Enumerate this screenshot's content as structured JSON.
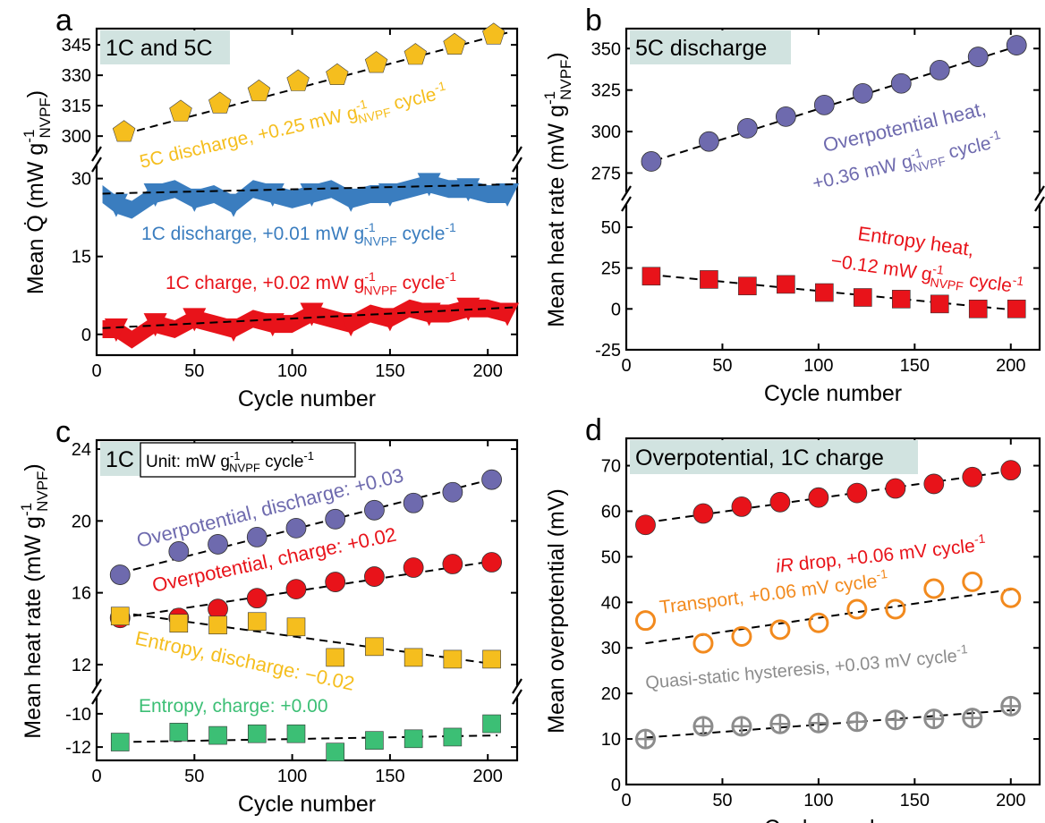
{
  "panels": [
    {
      "letter": "a",
      "title": "1C and 5C",
      "ylabel_main": "Mean Q̇ (mW g",
      "ylabel_sub": "NVPF",
      "ylabel_sup": "-1",
      "ylabel_tail": ")",
      "xlabel": "Cycle number",
      "xticks": [
        "0",
        "50",
        "100",
        "150",
        "200"
      ],
      "yticks_upper": [
        "300",
        "315",
        "330",
        "345"
      ],
      "yticks_lower": [
        "0",
        "15",
        "30"
      ],
      "annotations": [
        {
          "main": "5C discharge, +0.25 mW g",
          "sup": "-1",
          "sub": "NVPF",
          "tail": " cycle",
          "tail_sup": "-1"
        },
        {
          "main": "1C discharge, +0.01 mW g",
          "sup": "-1",
          "sub": "NVPF",
          "tail": " cycle",
          "tail_sup": "-1"
        },
        {
          "main": "1C charge, +0.02 mW g",
          "sup": "-1",
          "sub": "NVPF",
          "tail": " cycle",
          "tail_sup": "-1"
        }
      ]
    },
    {
      "letter": "b",
      "title": "5C discharge",
      "ylabel_main": "Mean heat rate (mW g",
      "ylabel_sub": "NVPF",
      "ylabel_sup": "-1",
      "ylabel_tail": ")",
      "xlabel": "Cycle number",
      "xticks": [
        "0",
        "50",
        "100",
        "150",
        "200"
      ],
      "yticks_upper": [
        "275",
        "300",
        "325",
        "350"
      ],
      "yticks_lower": [
        "-25",
        "0",
        "25",
        "50"
      ],
      "annotations": [
        {
          "line1": "Overpotential heat,",
          "main": "+0.36 mW g",
          "sup": "-1",
          "sub": "NVPF",
          "tail": " cycle",
          "tail_sup": "-1"
        },
        {
          "line1": "Entropy heat,",
          "main": "−0.12 mW g",
          "sup": "-1",
          "sub": "NVPF",
          "tail": " cycle",
          "tail_sup": "-1"
        }
      ]
    },
    {
      "letter": "c",
      "title": "1C",
      "unit_box": {
        "main": "Unit: mW g",
        "sup": "-1",
        "sub": "NVPF",
        "tail": " cycle",
        "tail_sup": "-1"
      },
      "ylabel_main": "Mean heat rate (mW g",
      "ylabel_sub": "NVPF",
      "ylabel_sup": "-1",
      "ylabel_tail": ")",
      "xlabel": "Cycle number",
      "xticks": [
        "0",
        "50",
        "100",
        "150",
        "200"
      ],
      "yticks_upper": [
        "12",
        "16",
        "20",
        "24"
      ],
      "yticks_lower": [
        "-12",
        "-10"
      ],
      "annotations": [
        "Overpotential, discharge: +0.03",
        "Overpotential, charge: +0.02",
        "Entropy, discharge: −0.02",
        "Entropy, charge: +0.00"
      ]
    },
    {
      "letter": "d",
      "title": "Overpotential, 1C charge",
      "ylabel": "Mean overpotential (mV)",
      "xlabel": "Cycle number",
      "xticks": [
        "0",
        "50",
        "100",
        "150",
        "200"
      ],
      "yticks": [
        "0",
        "10",
        "20",
        "30",
        "40",
        "50",
        "60",
        "70"
      ],
      "annotations": [
        {
          "italic": "iR",
          "main": " drop, +0.06 mV cycle",
          "sup": "-1"
        },
        {
          "main": "Transport, +0.06 mV cycle",
          "sup": "-1"
        },
        {
          "main": "Quasi-static hysteresis, +0.03 mV cycle",
          "sup": "-1"
        }
      ]
    }
  ],
  "colors": {
    "gold": "#F5BE1E",
    "blue": "#3A7DBF",
    "red": "#E8131A",
    "purple": "#6E6AAE",
    "green": "#3CBF75",
    "orange": "#F28A1E",
    "gray": "#8C8C8C",
    "title_bg": "#D1E3E0"
  },
  "chart_data": [
    {
      "type": "scatter",
      "panel": "a",
      "title": "1C and 5C",
      "xlabel": "Cycle number",
      "ylabel": "Mean Q̇ (mW g-1 NVPF)",
      "xlim": [
        0,
        215
      ],
      "ylim_lower": [
        -4,
        32
      ],
      "ylim_upper": [
        293,
        353
      ],
      "series": [
        {
          "name": "5C discharge",
          "marker": "pentagon",
          "color": "#F5BE1E",
          "x": [
            14,
            43,
            63,
            83,
            103,
            123,
            143,
            163,
            183,
            203
          ],
          "y": [
            302,
            312,
            316,
            322,
            327,
            330,
            336,
            340,
            345,
            350
          ]
        },
        {
          "name": "1C discharge",
          "marker": "dense-triangles",
          "color": "#3A7DBF",
          "x": [
            3,
            10,
            18,
            30,
            40,
            50,
            60,
            70,
            80,
            90,
            100,
            110,
            120,
            130,
            140,
            150,
            160,
            170,
            180,
            190,
            200,
            210
          ],
          "y": [
            27,
            25,
            24,
            27,
            28,
            26,
            27,
            25,
            28,
            27,
            26,
            27,
            28,
            26,
            27,
            27,
            28,
            29,
            28,
            28,
            27,
            27
          ],
          "fit": {
            "x": [
              3,
              213
            ],
            "y": [
              27.1,
              28.9
            ]
          }
        },
        {
          "name": "1C charge",
          "marker": "dense-triangles",
          "color": "#E8131A",
          "x": [
            3,
            10,
            18,
            30,
            40,
            50,
            60,
            70,
            80,
            90,
            100,
            110,
            120,
            130,
            140,
            150,
            160,
            170,
            180,
            190,
            200,
            210
          ],
          "y": [
            1,
            1,
            -1,
            2,
            1,
            3,
            2,
            1,
            3,
            2,
            2,
            4,
            3,
            2,
            4,
            3,
            5,
            4,
            4,
            5,
            5,
            4
          ],
          "fit": {
            "x": [
              3,
              213
            ],
            "y": [
              1.2,
              5.2
            ]
          }
        }
      ],
      "fit_5c": {
        "x": [
          14,
          210
        ],
        "y": [
          301,
          351
        ]
      }
    },
    {
      "type": "scatter",
      "panel": "b",
      "title": "5C discharge",
      "xlabel": "Cycle number",
      "ylabel": "Mean heat rate (mW g-1 NVPF)",
      "xlim": [
        0,
        215
      ],
      "ylim_lower": [
        -25,
        62
      ],
      "ylim_upper": [
        265,
        362
      ],
      "series": [
        {
          "name": "Overpotential heat",
          "marker": "circle",
          "color": "#6E6AAE",
          "x": [
            13,
            43,
            63,
            83,
            103,
            123,
            143,
            163,
            183,
            203
          ],
          "y": [
            282,
            294,
            302,
            309,
            316,
            323,
            329,
            337,
            345,
            352
          ],
          "fit": {
            "x": [
              8,
              205
            ],
            "y": [
              280,
              352
            ]
          }
        },
        {
          "name": "Entropy heat",
          "marker": "square",
          "color": "#E8131A",
          "x": [
            13,
            43,
            63,
            83,
            103,
            123,
            143,
            163,
            183,
            203
          ],
          "y": [
            20,
            18,
            14,
            15,
            10,
            7,
            6,
            3,
            0,
            0
          ],
          "fit": {
            "x": [
              12,
              205
            ],
            "y": [
              21,
              -1
            ]
          }
        }
      ]
    },
    {
      "type": "scatter",
      "panel": "c",
      "title": "1C",
      "xlabel": "Cycle number",
      "ylabel": "Mean heat rate (mW g-1 NVPF)",
      "xlim": [
        0,
        215
      ],
      "ylim_lower": [
        -12.8,
        -9.2
      ],
      "ylim_upper": [
        11,
        24.5
      ],
      "series": [
        {
          "name": "Overpotential, discharge",
          "marker": "circle",
          "color": "#6E6AAE",
          "x": [
            12,
            42,
            62,
            82,
            102,
            122,
            142,
            162,
            182,
            202
          ],
          "y": [
            17.0,
            18.3,
            18.7,
            19.1,
            19.6,
            20.1,
            20.6,
            21.0,
            21.6,
            22.3
          ],
          "fit": {
            "x": [
              12,
              205
            ],
            "y": [
              17.1,
              22.4
            ]
          }
        },
        {
          "name": "Overpotential, charge",
          "marker": "circle",
          "color": "#E8131A",
          "x": [
            12,
            42,
            62,
            82,
            102,
            122,
            142,
            162,
            182,
            202
          ],
          "y": [
            14.6,
            14.6,
            15.1,
            15.7,
            16.2,
            16.6,
            16.9,
            17.4,
            17.6,
            17.7
          ],
          "fit": {
            "x": [
              12,
              205
            ],
            "y": [
              14.6,
              17.8
            ]
          }
        },
        {
          "name": "Entropy, discharge",
          "marker": "square",
          "color": "#F5BE1E",
          "x": [
            12,
            42,
            62,
            82,
            102,
            122,
            142,
            162,
            182,
            202
          ],
          "y": [
            14.7,
            14.3,
            14.2,
            14.4,
            14.1,
            12.4,
            13.0,
            12.4,
            12.3,
            12.3
          ],
          "fit": {
            "x": [
              12,
              205
            ],
            "y": [
              14.9,
              12.0
            ]
          }
        },
        {
          "name": "Entropy, charge",
          "marker": "square",
          "color": "#3CBF75",
          "x": [
            12,
            42,
            62,
            82,
            102,
            122,
            142,
            162,
            182,
            202
          ],
          "y": [
            -11.7,
            -11.1,
            -11.3,
            -11.2,
            -11.2,
            -12.3,
            -11.6,
            -11.5,
            -11.4,
            -10.6
          ],
          "fit": {
            "x": [
              12,
              205
            ],
            "y": [
              -11.7,
              -11.3
            ]
          }
        }
      ]
    },
    {
      "type": "scatter",
      "panel": "d",
      "title": "Overpotential, 1C charge",
      "xlabel": "Cycle number",
      "ylabel": "Mean overpotential (mV)",
      "xlim": [
        0,
        215
      ],
      "ylim": [
        0,
        76
      ],
      "series": [
        {
          "name": "iR drop",
          "marker": "circle",
          "color": "#E8131A",
          "x": [
            10,
            40,
            60,
            80,
            100,
            120,
            140,
            160,
            180,
            200
          ],
          "y": [
            57,
            59.5,
            61,
            62,
            63,
            64,
            65,
            66,
            67.5,
            69
          ],
          "fit": {
            "x": [
              10,
              203
            ],
            "y": [
              57.5,
              69
            ]
          }
        },
        {
          "name": "Transport",
          "marker": "open-circle",
          "color": "#F28A1E",
          "x": [
            10,
            40,
            60,
            80,
            100,
            120,
            140,
            160,
            180,
            200
          ],
          "y": [
            36,
            31,
            32.5,
            34,
            35.5,
            38.5,
            38.5,
            43,
            44.5,
            41
          ],
          "fit": {
            "x": [
              10,
              203
            ],
            "y": [
              31,
              43
            ]
          }
        },
        {
          "name": "Quasi-static hysteresis",
          "marker": "crossed-circle",
          "color": "#8C8C8C",
          "x": [
            10,
            40,
            60,
            80,
            100,
            120,
            140,
            160,
            180,
            200
          ],
          "y": [
            10,
            12.8,
            12.8,
            13.3,
            13.5,
            13.8,
            14.2,
            14.4,
            14.6,
            17.2
          ],
          "fit": {
            "x": [
              10,
              203
            ],
            "y": [
              10.3,
              16.4
            ]
          }
        }
      ]
    }
  ]
}
